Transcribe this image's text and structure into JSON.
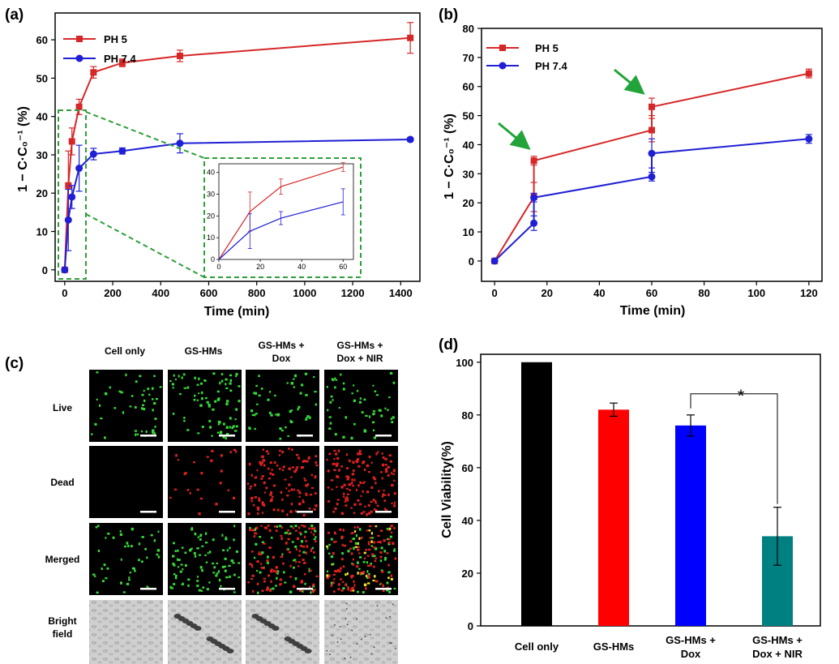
{
  "colors": {
    "red": "#d62728",
    "blue": "#1f1fd6",
    "green_dash": "#2e9e3a",
    "arrow_green": "#23a43a"
  },
  "chart_data": [
    {
      "panel": "(a)",
      "type": "line",
      "xlabel": "Time (min)",
      "ylabel": "1 − C·C₀⁻¹ (%)",
      "xlim": [
        -40,
        1480
      ],
      "ylim": [
        -3,
        67
      ],
      "xticks": [
        "0",
        "200",
        "400",
        "600",
        "800",
        "1000",
        "1200",
        "1400"
      ],
      "yticks": [
        "0",
        "10",
        "20",
        "30",
        "40",
        "50",
        "60"
      ],
      "legend": [
        "PH 5",
        "PH 7.4"
      ],
      "series": [
        {
          "name": "PH 5",
          "color": "#d62728",
          "marker": "square",
          "x": [
            0,
            15,
            30,
            60,
            120,
            240,
            480,
            1440
          ],
          "y": [
            0,
            22,
            33.5,
            42.5,
            51.5,
            54,
            55.8,
            60.5
          ],
          "err": [
            0,
            9,
            3.5,
            2,
            1.5,
            1,
            1.5,
            4
          ]
        },
        {
          "name": "PH 7.4",
          "color": "#1f1fd6",
          "marker": "circle",
          "x": [
            0,
            15,
            30,
            60,
            120,
            240,
            480,
            1440
          ],
          "y": [
            0,
            13,
            19,
            26.5,
            30.2,
            31,
            33,
            34
          ],
          "err": [
            0,
            8,
            3,
            6,
            1.5,
            0.8,
            2.5,
            0.5
          ]
        }
      ],
      "inset": {
        "xlim": [
          0,
          65
        ],
        "ylim": [
          0,
          44
        ],
        "xticks": [
          "0",
          "20",
          "40",
          "60"
        ],
        "yticks": [
          "0",
          "10",
          "20",
          "30",
          "40"
        ],
        "series": [
          {
            "name": "PH 5",
            "x": [
              0,
              15,
              30,
              60
            ],
            "y": [
              0,
              22,
              33.5,
              42.5
            ],
            "err": [
              0,
              9,
              3.5,
              2
            ]
          },
          {
            "name": "PH 7.4",
            "x": [
              0,
              15,
              30,
              60
            ],
            "y": [
              0,
              13,
              19,
              26.5
            ],
            "err": [
              0,
              8,
              3,
              6
            ]
          }
        ]
      }
    },
    {
      "panel": "(b)",
      "type": "line",
      "xlabel": "Time (min)",
      "ylabel": "1 − C·C₀⁻¹ (%)",
      "xlim": [
        -5,
        125
      ],
      "ylim": [
        -7,
        80
      ],
      "xticks": [
        "0",
        "20",
        "40",
        "60",
        "80",
        "100",
        "120"
      ],
      "yticks": [
        "0",
        "10",
        "20",
        "30",
        "40",
        "50",
        "60",
        "70",
        "80"
      ],
      "legend": [
        "PH 5",
        "PH 7.4"
      ],
      "series": [
        {
          "name": "PH 5",
          "color": "#d62728",
          "marker": "square",
          "x": [
            0,
            15,
            15,
            60,
            60,
            120
          ],
          "y": [
            0,
            22,
            34.5,
            45,
            53,
            64.5
          ],
          "err": [
            0,
            5,
            1.5,
            4,
            3,
            1.5
          ]
        },
        {
          "name": "PH 7.4",
          "color": "#1f1fd6",
          "marker": "circle",
          "x": [
            0,
            15,
            15,
            60,
            60,
            120
          ],
          "y": [
            0,
            13,
            21.8,
            29,
            37,
            42
          ],
          "err": [
            0,
            2.5,
            1.5,
            1.5,
            5,
            1.5
          ]
        }
      ],
      "arrows_at_x": [
        15,
        60
      ]
    },
    {
      "panel": "(d)",
      "type": "bar",
      "ylabel": "Cell Viability(%)",
      "ylim": [
        0,
        103
      ],
      "yticks": [
        "0",
        "20",
        "40",
        "60",
        "80",
        "100"
      ],
      "categories": [
        [
          "Cell only"
        ],
        [
          "GS-HMs"
        ],
        [
          "GS-HMs +",
          "Dox"
        ],
        [
          "GS-HMs +",
          "Dox + NIR"
        ]
      ],
      "values": [
        100,
        82,
        76,
        34
      ],
      "err": [
        0,
        2.5,
        4,
        11
      ],
      "bar_colors": [
        "#000000",
        "#ff0000",
        "#0000ff",
        "#008080"
      ],
      "significance": {
        "between": [
          2,
          3
        ],
        "label": "*"
      }
    }
  ],
  "panel_c": {
    "label": "(c)",
    "col_headers": [
      [
        "Cell only"
      ],
      [
        "GS-HMs"
      ],
      [
        "GS-HMs +",
        "Dox"
      ],
      [
        "GS-HMs +",
        "Dox + NIR"
      ]
    ],
    "row_headers": [
      [
        "Live"
      ],
      [
        "Dead"
      ],
      [
        "Merged"
      ],
      [
        "Bright",
        "field"
      ]
    ]
  }
}
